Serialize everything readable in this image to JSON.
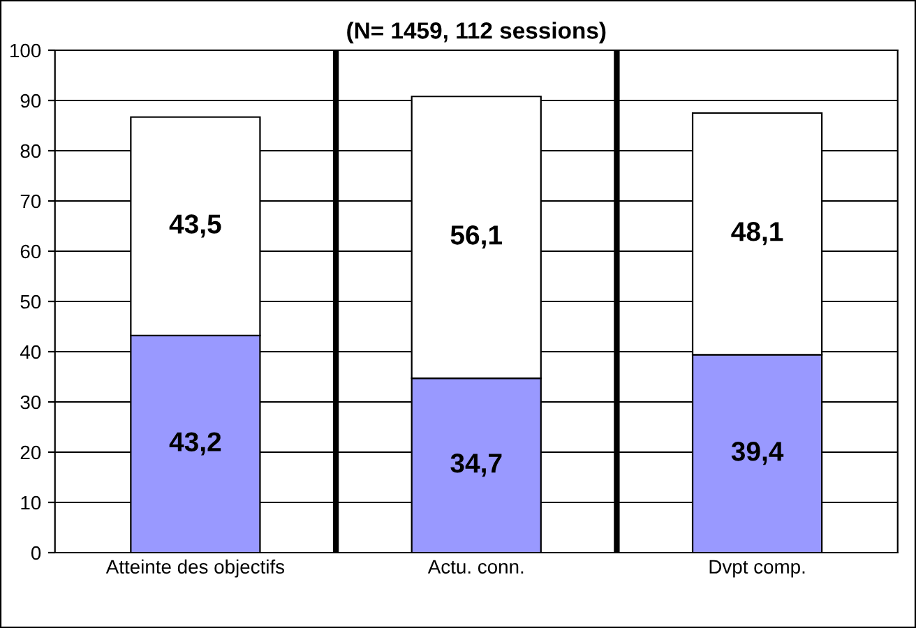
{
  "chart_data": {
    "type": "bar",
    "title": "(N= 1459, 112 sessions)",
    "categories": [
      "Atteinte des objectifs",
      "Actu. conn.",
      "Dvpt comp."
    ],
    "stacked": true,
    "series": [
      {
        "color": "#9999ff",
        "values": [
          43.2,
          34.7,
          39.4
        ],
        "value_labels": [
          "43,2",
          "34,7",
          "39,4"
        ]
      },
      {
        "color": "#ffffff",
        "values": [
          43.5,
          56.1,
          48.1
        ],
        "value_labels": [
          "43,5",
          "56,1",
          "48,1"
        ]
      }
    ],
    "ylim": [
      0,
      100
    ],
    "yticks": [
      0,
      10,
      20,
      30,
      40,
      50,
      60,
      70,
      80,
      90,
      100
    ],
    "grid": "y"
  }
}
